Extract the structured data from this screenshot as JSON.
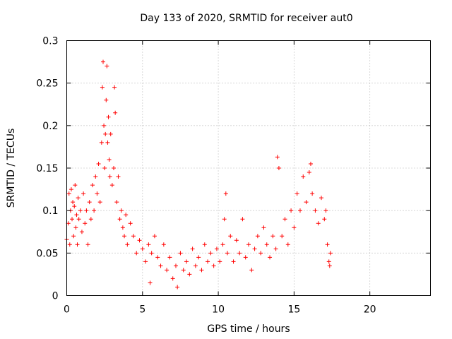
{
  "chart_data": {
    "type": "scatter",
    "title": "Day 133 of 2020, SRMTID for receiver aut0",
    "xlabel": "GPS time / hours",
    "ylabel": "SRMTID / TECUs",
    "xlim": [
      0,
      24
    ],
    "ylim": [
      0,
      0.3
    ],
    "xticks": [
      0,
      5,
      10,
      15,
      20
    ],
    "xtick_labels": [
      "0",
      "5",
      "10",
      "15",
      "20"
    ],
    "yticks": [
      0,
      0.05,
      0.1,
      0.15,
      0.2,
      0.25,
      0.3
    ],
    "ytick_labels": [
      "0",
      "0.05",
      "0.1",
      "0.15",
      "0.2",
      "0.25",
      "0.3"
    ],
    "grid": true,
    "marker": "+",
    "color": "#ff0000",
    "series": [
      {
        "name": "SRMTID",
        "points": [
          [
            0.0,
            0.066
          ],
          [
            0.1,
            0.085
          ],
          [
            0.15,
            0.12
          ],
          [
            0.2,
            0.06
          ],
          [
            0.25,
            0.1
          ],
          [
            0.3,
            0.125
          ],
          [
            0.35,
            0.09
          ],
          [
            0.4,
            0.11
          ],
          [
            0.45,
            0.07
          ],
          [
            0.5,
            0.105
          ],
          [
            0.55,
            0.13
          ],
          [
            0.6,
            0.08
          ],
          [
            0.65,
            0.095
          ],
          [
            0.7,
            0.06
          ],
          [
            0.75,
            0.115
          ],
          [
            0.8,
            0.09
          ],
          [
            0.9,
            0.1
          ],
          [
            1.0,
            0.075
          ],
          [
            1.1,
            0.12
          ],
          [
            1.2,
            0.085
          ],
          [
            1.3,
            0.1
          ],
          [
            1.4,
            0.06
          ],
          [
            1.5,
            0.11
          ],
          [
            1.6,
            0.09
          ],
          [
            1.7,
            0.13
          ],
          [
            1.8,
            0.1
          ],
          [
            1.9,
            0.14
          ],
          [
            2.0,
            0.12
          ],
          [
            2.1,
            0.155
          ],
          [
            2.2,
            0.11
          ],
          [
            2.3,
            0.18
          ],
          [
            2.35,
            0.245
          ],
          [
            2.4,
            0.275
          ],
          [
            2.45,
            0.2
          ],
          [
            2.5,
            0.15
          ],
          [
            2.55,
            0.19
          ],
          [
            2.6,
            0.23
          ],
          [
            2.65,
            0.27
          ],
          [
            2.7,
            0.18
          ],
          [
            2.75,
            0.21
          ],
          [
            2.8,
            0.16
          ],
          [
            2.85,
            0.14
          ],
          [
            2.9,
            0.19
          ],
          [
            3.0,
            0.13
          ],
          [
            3.1,
            0.15
          ],
          [
            3.15,
            0.245
          ],
          [
            3.2,
            0.215
          ],
          [
            3.3,
            0.11
          ],
          [
            3.4,
            0.14
          ],
          [
            3.5,
            0.09
          ],
          [
            3.6,
            0.1
          ],
          [
            3.7,
            0.08
          ],
          [
            3.8,
            0.07
          ],
          [
            3.9,
            0.095
          ],
          [
            4.0,
            0.06
          ],
          [
            4.2,
            0.085
          ],
          [
            4.4,
            0.07
          ],
          [
            4.6,
            0.05
          ],
          [
            4.8,
            0.065
          ],
          [
            5.0,
            0.055
          ],
          [
            5.2,
            0.04
          ],
          [
            5.4,
            0.06
          ],
          [
            5.5,
            0.015
          ],
          [
            5.6,
            0.05
          ],
          [
            5.8,
            0.07
          ],
          [
            6.0,
            0.045
          ],
          [
            6.2,
            0.035
          ],
          [
            6.4,
            0.06
          ],
          [
            6.6,
            0.03
          ],
          [
            6.8,
            0.045
          ],
          [
            7.0,
            0.02
          ],
          [
            7.2,
            0.035
          ],
          [
            7.3,
            0.01
          ],
          [
            7.5,
            0.05
          ],
          [
            7.7,
            0.03
          ],
          [
            7.9,
            0.04
          ],
          [
            8.1,
            0.025
          ],
          [
            8.3,
            0.055
          ],
          [
            8.5,
            0.035
          ],
          [
            8.7,
            0.045
          ],
          [
            8.9,
            0.03
          ],
          [
            9.1,
            0.06
          ],
          [
            9.3,
            0.04
          ],
          [
            9.5,
            0.05
          ],
          [
            9.7,
            0.035
          ],
          [
            9.9,
            0.055
          ],
          [
            10.1,
            0.04
          ],
          [
            10.3,
            0.06
          ],
          [
            10.4,
            0.09
          ],
          [
            10.5,
            0.12
          ],
          [
            10.6,
            0.05
          ],
          [
            10.8,
            0.07
          ],
          [
            11.0,
            0.04
          ],
          [
            11.2,
            0.065
          ],
          [
            11.4,
            0.05
          ],
          [
            11.6,
            0.09
          ],
          [
            11.8,
            0.045
          ],
          [
            12.0,
            0.06
          ],
          [
            12.2,
            0.03
          ],
          [
            12.4,
            0.055
          ],
          [
            12.6,
            0.07
          ],
          [
            12.8,
            0.05
          ],
          [
            13.0,
            0.08
          ],
          [
            13.2,
            0.06
          ],
          [
            13.4,
            0.045
          ],
          [
            13.6,
            0.07
          ],
          [
            13.8,
            0.055
          ],
          [
            13.9,
            0.163
          ],
          [
            14.0,
            0.15
          ],
          [
            14.2,
            0.07
          ],
          [
            14.4,
            0.09
          ],
          [
            14.6,
            0.06
          ],
          [
            14.8,
            0.1
          ],
          [
            15.0,
            0.08
          ],
          [
            15.2,
            0.12
          ],
          [
            15.4,
            0.1
          ],
          [
            15.6,
            0.14
          ],
          [
            15.8,
            0.11
          ],
          [
            16.0,
            0.145
          ],
          [
            16.1,
            0.155
          ],
          [
            16.2,
            0.12
          ],
          [
            16.4,
            0.1
          ],
          [
            16.6,
            0.085
          ],
          [
            16.8,
            0.115
          ],
          [
            17.0,
            0.09
          ],
          [
            17.1,
            0.1
          ],
          [
            17.2,
            0.06
          ],
          [
            17.3,
            0.04
          ],
          [
            17.35,
            0.035
          ],
          [
            17.4,
            0.05
          ]
        ]
      }
    ]
  }
}
